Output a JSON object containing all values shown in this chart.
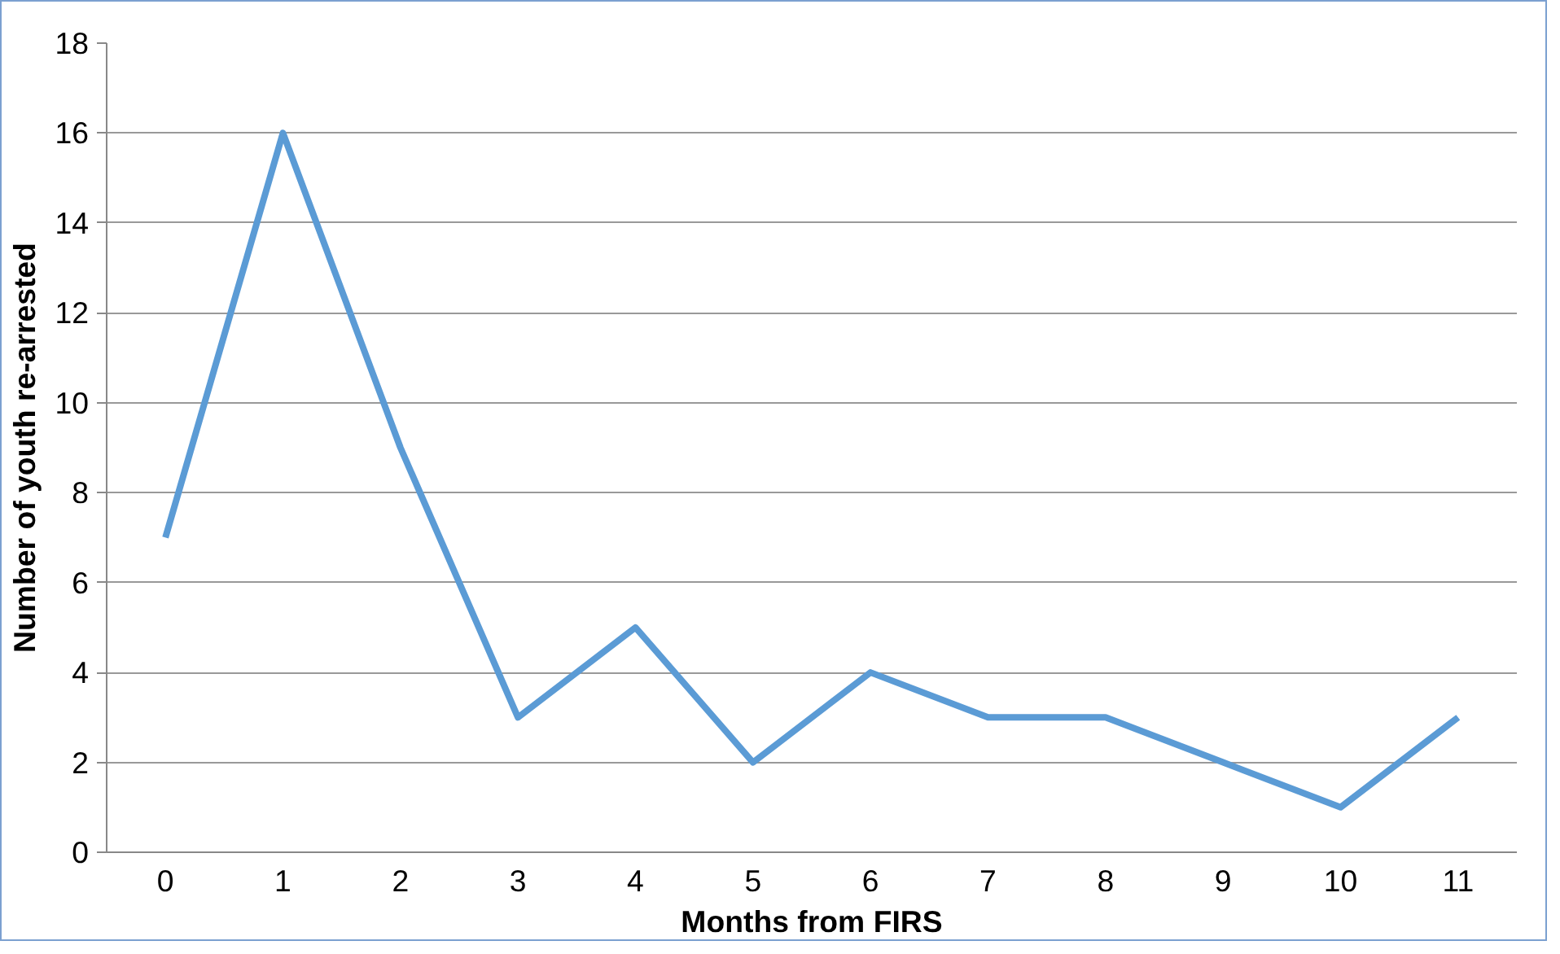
{
  "chart_data": {
    "type": "line",
    "xlabel": "Months from FIRS",
    "ylabel": "Number of youth re-arrested",
    "categories": [
      "0",
      "1",
      "2",
      "3",
      "4",
      "5",
      "6",
      "7",
      "8",
      "9",
      "10",
      "11"
    ],
    "series": [
      {
        "color": "#5b9bd5",
        "values": [
          7,
          16,
          9,
          3,
          5,
          2,
          4,
          3,
          3,
          2,
          1,
          3
        ]
      }
    ],
    "ylim": [
      0,
      18
    ],
    "yticks": [
      0,
      2,
      4,
      6,
      8,
      10,
      12,
      14,
      16,
      18
    ],
    "grid": "y",
    "marker": "none",
    "line_style": "solid"
  }
}
